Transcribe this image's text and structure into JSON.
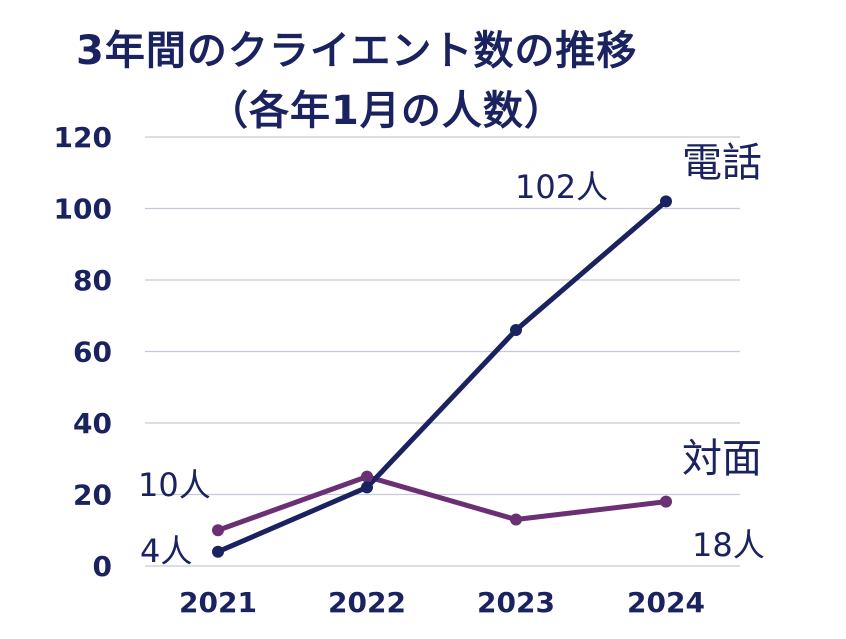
{
  "title": {
    "line1": "3年間のクライエント数の推移",
    "line2": "（各年1月の人数）"
  },
  "chart_data": {
    "type": "line",
    "title": "3年間のクライエント数の推移（各年1月の人数）",
    "categories": [
      "2021",
      "2022",
      "2023",
      "2024"
    ],
    "ylim": [
      0,
      120
    ],
    "yticks": [
      "0",
      "20",
      "40",
      "60",
      "80",
      "100",
      "120"
    ],
    "grid": true,
    "series": [
      {
        "name": "電話",
        "values": [
          4,
          22,
          66,
          102
        ],
        "color": "#1a2260"
      },
      {
        "name": "対面",
        "values": [
          10,
          25,
          13,
          18
        ],
        "color": "#6b2f73"
      }
    ],
    "annotations": [
      {
        "text": "102人",
        "series": "電話",
        "point": 3
      },
      {
        "text": "4人",
        "series": "電話",
        "point": 0
      },
      {
        "text": "10人",
        "series": "対面",
        "point": 0
      },
      {
        "text": "18人",
        "series": "対面",
        "point": 3
      }
    ]
  }
}
